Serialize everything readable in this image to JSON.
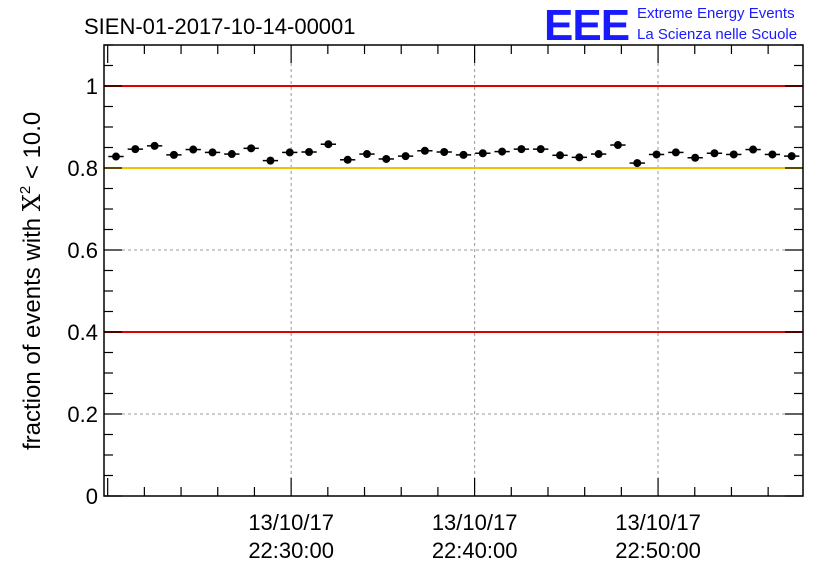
{
  "chart_data": {
    "type": "scatter",
    "title": "SIEN-01-2017-10-14-00001",
    "ylabel_text": "fraction of events with ",
    "ylabel_chi": "X",
    "ylabel_exp": "2",
    "ylabel_tail": " < 10.0",
    "ylim": [
      0,
      1.1
    ],
    "y_ticks": [
      "0",
      "0.2",
      "0.4",
      "0.6",
      "0.8",
      "1"
    ],
    "y_tick_values": [
      0,
      0.2,
      0.4,
      0.6,
      0.8,
      1.0
    ],
    "x_range_minutes": [
      22.33,
      22.965
    ],
    "x_ticks": [
      {
        "date": "13/10/17",
        "time": "22:30:00",
        "t": 22.5
      },
      {
        "date": "13/10/17",
        "time": "22:40:00",
        "t": 22.6667
      },
      {
        "date": "13/10/17",
        "time": "22:50:00",
        "t": 22.8333
      }
    ],
    "reference_lines": [
      {
        "y": 1.0,
        "color": "#e00000"
      },
      {
        "y": 0.8,
        "color": "#f5c000"
      },
      {
        "y": 0.4,
        "color": "#e00000"
      }
    ],
    "grid": true,
    "values": [
      0.828,
      0.846,
      0.854,
      0.832,
      0.845,
      0.838,
      0.834,
      0.848,
      0.818,
      0.838,
      0.839,
      0.858,
      0.82,
      0.834,
      0.822,
      0.829,
      0.842,
      0.839,
      0.832,
      0.836,
      0.84,
      0.846,
      0.846,
      0.831,
      0.826,
      0.834,
      0.856,
      0.812,
      0.833,
      0.838,
      0.825,
      0.836,
      0.833,
      0.845,
      0.833,
      0.829
    ]
  },
  "logo": {
    "mark": "EEE",
    "line1": "Extreme Energy Events",
    "line2": "La Scienza nelle Scuole",
    "color": "#1a1aff"
  }
}
